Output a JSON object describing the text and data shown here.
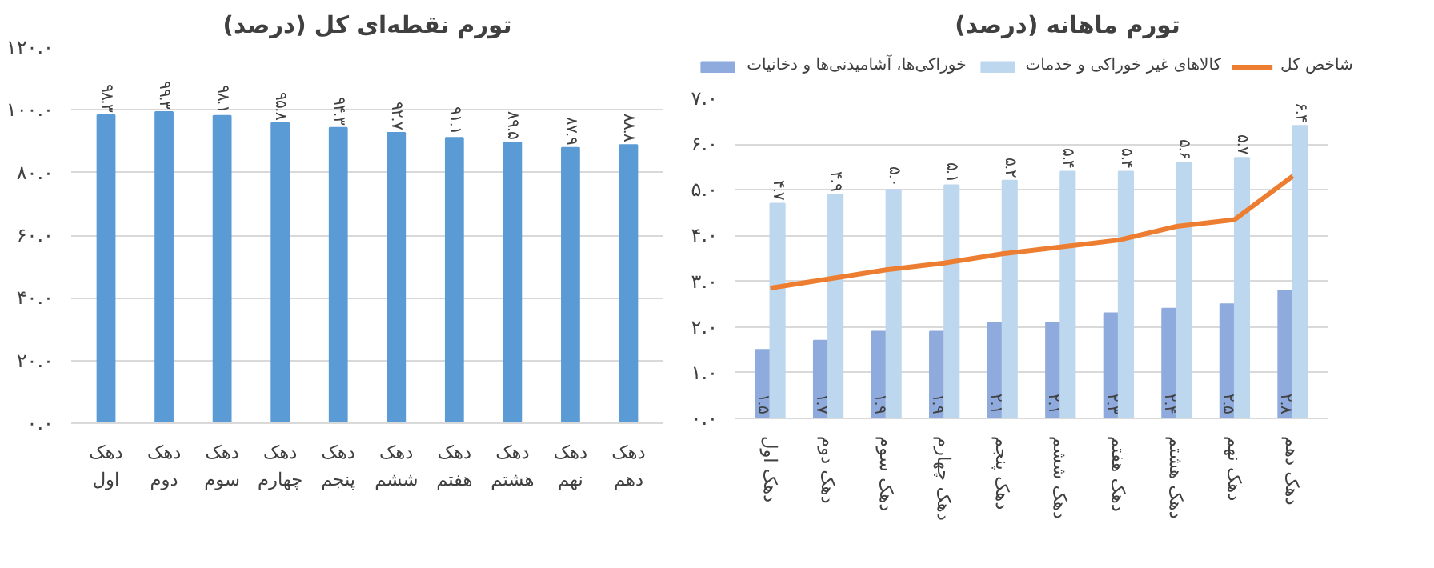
{
  "chart_data": [
    {
      "type": "bar",
      "title": "تورم نقطه‌ای کل (درصد)",
      "categories": [
        "دهک اول",
        "دهک دوم",
        "دهک سوم",
        "دهک چهارم",
        "دهک پنجم",
        "دهک ششم",
        "دهک هفتم",
        "دهک هشتم",
        "دهک نهم",
        "دهک دهم"
      ],
      "series": [
        {
          "color": "#5b9bd5",
          "values": [
            98.3,
            99.3,
            98.1,
            95.8,
            94.3,
            92.7,
            91.1,
            89.5,
            87.9,
            88.8
          ],
          "value_labels": [
            "۹۸.۳",
            "۹۹.۳",
            "۹۸.۱",
            "۹۵.۸",
            "۹۴.۳",
            "۹۲.۷",
            "۹۱.۱",
            "۸۹.۵",
            "۸۷.۹",
            "۸۸.۸"
          ]
        }
      ],
      "ylim": [
        0,
        120
      ],
      "yticks": [
        {
          "value": 0,
          "label": "۰.۰"
        },
        {
          "value": 20,
          "label": "۲۰.۰"
        },
        {
          "value": 40,
          "label": "۴۰.۰"
        },
        {
          "value": 60,
          "label": "۶۰.۰"
        },
        {
          "value": 80,
          "label": "۸۰.۰"
        },
        {
          "value": 100,
          "label": "۱۰۰.۰"
        },
        {
          "value": 120,
          "label": "۱۲۰.۰"
        }
      ],
      "grid": "y",
      "legend": false
    },
    {
      "type": "bar",
      "title": "تورم ماهانه (درصد)",
      "categories": [
        "دهک اول",
        "دهک دوم",
        "دهک سوم",
        "دهک چهارم",
        "دهک پنجم",
        "دهک ششم",
        "دهک هفتم",
        "دهک هشتم",
        "دهک نهم",
        "دهک دهم"
      ],
      "series": [
        {
          "name": "خوراکی‌ها، آشامیدنی‌ها و دخانیات",
          "color": "#8faadc",
          "values": [
            1.5,
            1.7,
            1.9,
            1.9,
            2.1,
            2.1,
            2.3,
            2.4,
            2.5,
            2.8
          ],
          "value_labels": [
            "۱.۵",
            "۱.۷",
            "۱.۹",
            "۱.۹",
            "۲.۱",
            "۲.۱",
            "۲.۳",
            "۲.۴",
            "۲.۵",
            "۲.۸"
          ]
        },
        {
          "name": "کالاهای غیر خوراکی و خدمات",
          "color": "#bdd7ee",
          "values": [
            4.7,
            4.9,
            5.0,
            5.1,
            5.2,
            5.4,
            5.4,
            5.6,
            5.7,
            6.4
          ],
          "value_labels": [
            "۴.۷",
            "۴.۹",
            "۵.۰",
            "۵.۱",
            "۵.۲",
            "۵.۴",
            "۵.۴",
            "۵.۶",
            "۵.۷",
            "۶.۴"
          ]
        },
        {
          "name": "شاخص کل",
          "type": "line",
          "color": "#ed7d31",
          "values": [
            2.85,
            3.05,
            3.25,
            3.4,
            3.6,
            3.75,
            3.9,
            4.2,
            4.35,
            5.3
          ]
        }
      ],
      "ylim": [
        0,
        7
      ],
      "yticks": [
        {
          "value": 0,
          "label": "۰.۰"
        },
        {
          "value": 1,
          "label": "۱.۰"
        },
        {
          "value": 2,
          "label": "۲.۰"
        },
        {
          "value": 3,
          "label": "۳.۰"
        },
        {
          "value": 4,
          "label": "۴.۰"
        },
        {
          "value": 5,
          "label": "۵.۰"
        },
        {
          "value": 6,
          "label": "۶.۰"
        },
        {
          "value": 7,
          "label": "۷.۰"
        }
      ],
      "grid": "y",
      "legend": "top",
      "marker": "none",
      "line_style": "solid"
    }
  ]
}
